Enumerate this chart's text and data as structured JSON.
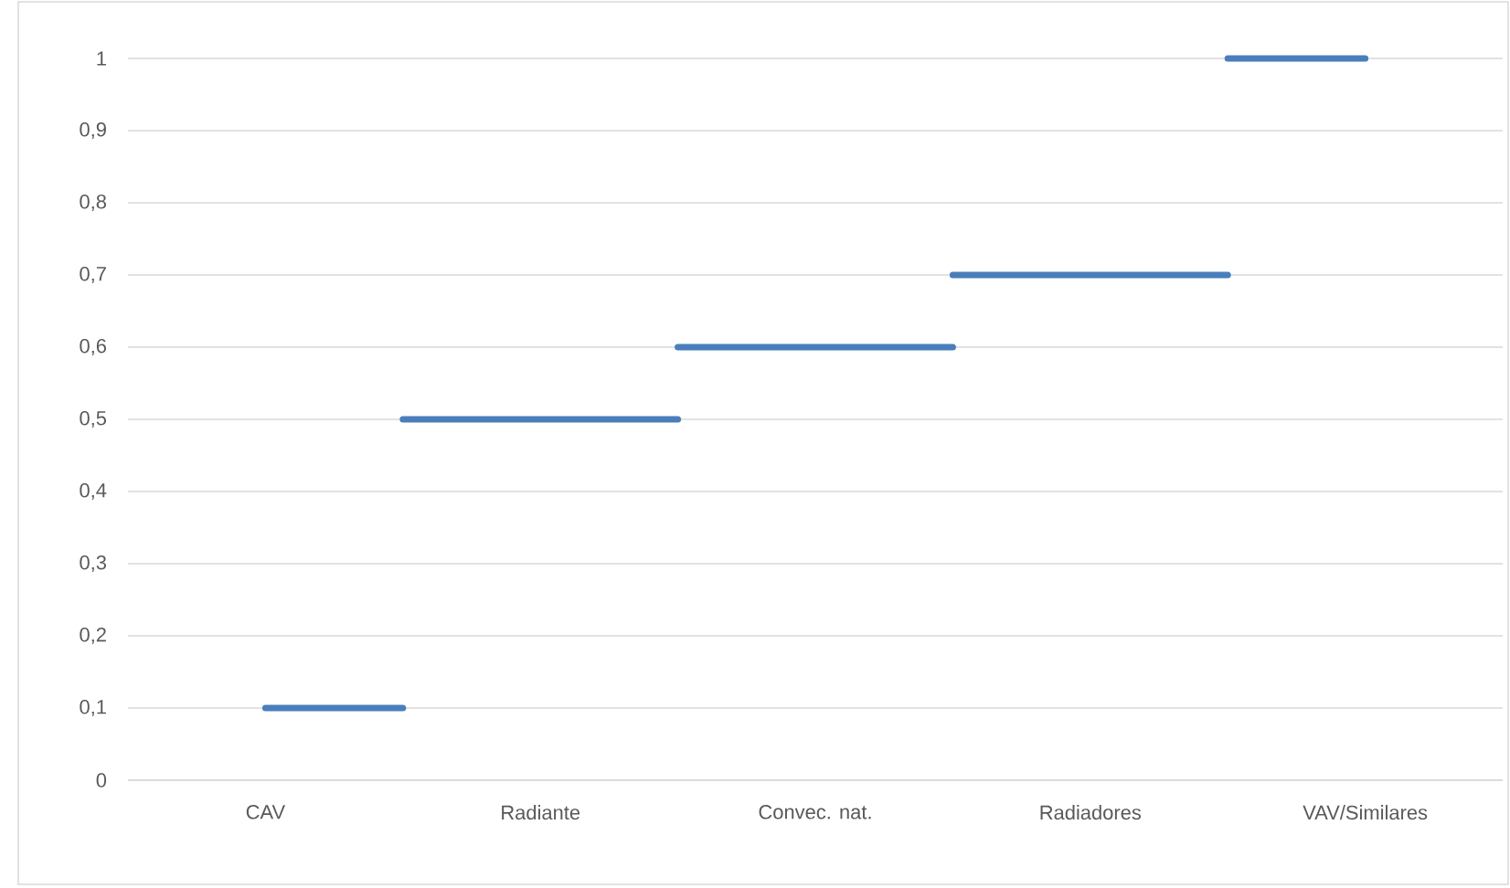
{
  "chart_data": {
    "type": "step",
    "categories": [
      "CAV",
      "Radiante",
      "Convec. nat.",
      "Radiadores",
      "VAV/Similares"
    ],
    "values": [
      0.1,
      0.5,
      0.6,
      0.7,
      1
    ],
    "color": "#4a7ebb",
    "ylim": [
      0,
      1
    ],
    "yticks": [
      0,
      {
        "value": 0.1,
        "label": "0,1"
      },
      {
        "value": 0.2,
        "label": "0,2"
      },
      {
        "value": 0.3,
        "label": "0,3"
      },
      {
        "value": 0.4,
        "label": "0,4"
      },
      {
        "value": 0.5,
        "label": "0,5"
      },
      {
        "value": 0.6,
        "label": "0,6"
      },
      {
        "value": 0.7,
        "label": "0,7"
      },
      {
        "value": 0.8,
        "label": "0,8"
      },
      {
        "value": 0.9,
        "label": "0,9"
      },
      1
    ],
    "grid": "y"
  }
}
